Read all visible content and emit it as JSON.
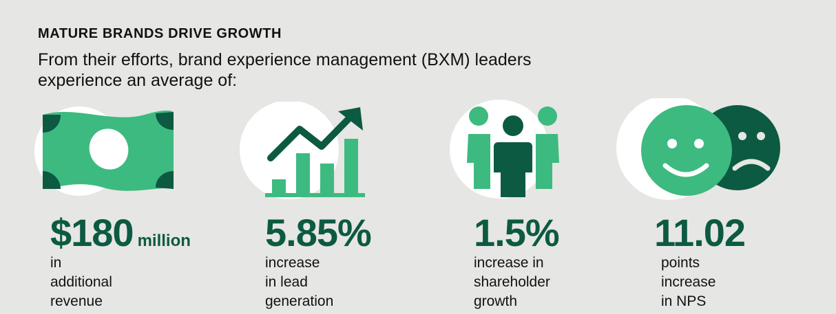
{
  "header": {
    "title": "MATURE BRANDS DRIVE GROWTH",
    "subtitle": "From their efforts, brand experience management (BXM) leaders experience an average of:"
  },
  "colors": {
    "background": "#e6e6e4",
    "light_green": "#3dba80",
    "dark_green": "#0c5a41",
    "circle": "#ffffff"
  },
  "stats": [
    {
      "icon": "money-bill-icon",
      "value": "$180",
      "unit": "million",
      "line1": "in additional revenue",
      "line2": ""
    },
    {
      "icon": "growth-chart-icon",
      "value": "5.85%",
      "unit": "",
      "line1": "increase in lead",
      "line2": "generation"
    },
    {
      "icon": "people-group-icon",
      "value": "1.5%",
      "unit": "",
      "line1": "increase in",
      "line2": "shareholder growth"
    },
    {
      "icon": "happy-sad-faces-icon",
      "value": "11.02",
      "unit": "",
      "line1": "points increase",
      "line2": "in NPS"
    }
  ]
}
